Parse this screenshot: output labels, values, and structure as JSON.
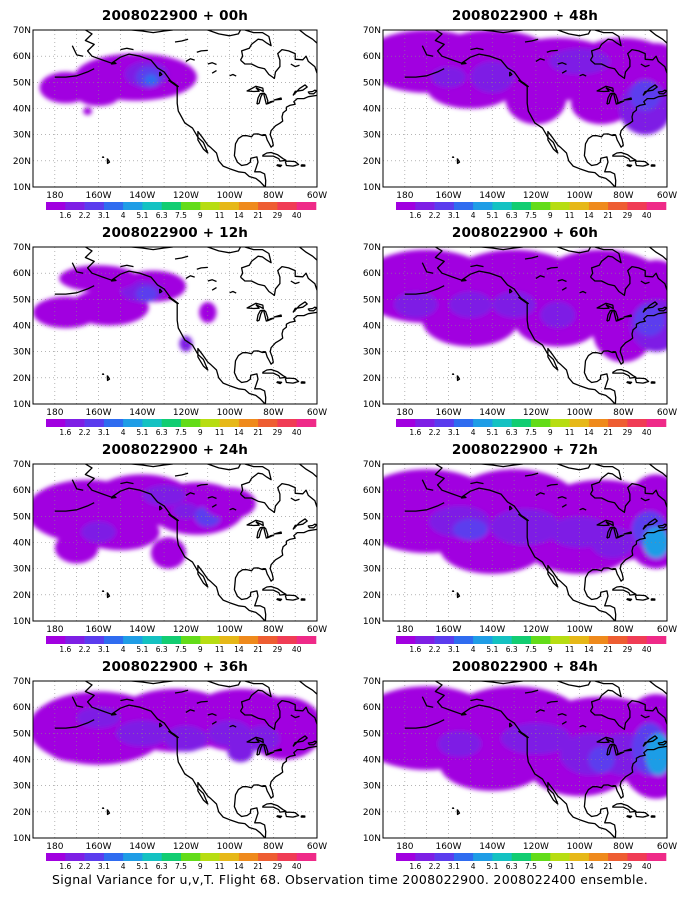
{
  "map": {
    "y_ticks": [
      "70N",
      "60N",
      "50N",
      "40N",
      "30N",
      "20N",
      "10N"
    ],
    "x_ticks": [
      "180",
      "160W",
      "140W",
      "120W",
      "100W",
      "80W",
      "60W"
    ],
    "lat_range": [
      10,
      70
    ],
    "lon_range": [
      -190,
      -60
    ],
    "coastline_color": "#000000",
    "grid": "dotted"
  },
  "colorbar": {
    "labels": [
      "1.6",
      "2.2",
      "3.1",
      "4",
      "5.1",
      "6.3",
      "7.5",
      "9",
      "11",
      "14",
      "21",
      "29",
      "40"
    ],
    "colors": [
      "#a100e0",
      "#7e1fe5",
      "#5b3cee",
      "#2f6cf0",
      "#1f9de6",
      "#14c2c2",
      "#12cd72",
      "#63dc19",
      "#b7dd12",
      "#e6b818",
      "#ef8a1c",
      "#ee5d32",
      "#f03c55",
      "#ef2a88"
    ]
  },
  "panels": [
    {
      "title": "2008022900 + 00h"
    },
    {
      "title": "2008022900 + 12h"
    },
    {
      "title": "2008022900 + 24h"
    },
    {
      "title": "2008022900 + 36h"
    },
    {
      "title": "2008022900 + 48h"
    },
    {
      "title": "2008022900 + 60h"
    },
    {
      "title": "2008022900 + 72h"
    },
    {
      "title": "2008022900 + 84h"
    }
  ],
  "caption": "Signal Variance for u,v,T. Flight 68. Observation time 2008022900. 2008022400 ensemble."
}
